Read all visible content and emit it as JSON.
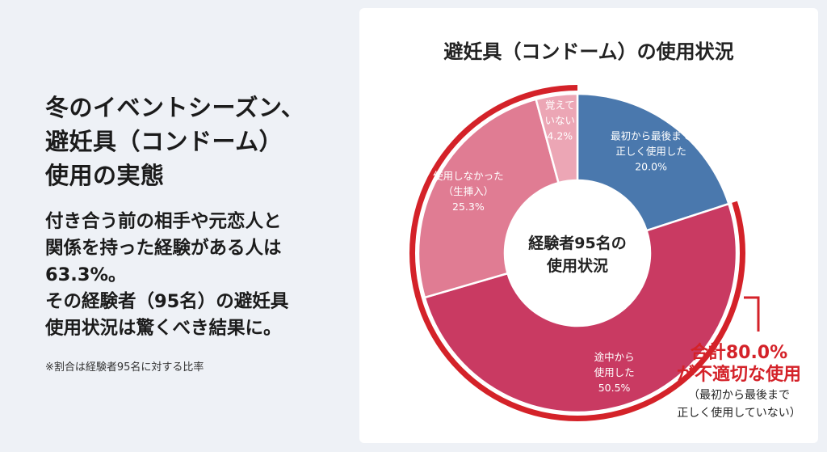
{
  "headline": {
    "line1": "冬のイベントシーズン、",
    "line2": "避妊具（コンドーム）",
    "line3": "使用の実態"
  },
  "body": {
    "line1": "付き合う前の相手や元恋人と",
    "line2": "関係を持った経験がある人は",
    "line3": "63.3%。",
    "line4": "その経験者（95名）の避妊具",
    "line5": "使用状況は驚くべき結果に。"
  },
  "note": "※割合は経験者95名に対する比率",
  "callout": {
    "line1": "合計80.0%",
    "line2": "が不適切な使用",
    "line3": "（最初から最後まで",
    "line4": "正しく使用していない）"
  },
  "colors": {
    "blue": "#4a78ad",
    "crimson": "#c93a62",
    "pink": "#e07c93",
    "light_pink": "#eca6b5",
    "red_accent": "#d42229"
  },
  "chart_data": {
    "type": "pie",
    "title": "避妊具（コンドーム）の使用状況",
    "center_label": [
      "経験者95名の",
      "使用状況"
    ],
    "slices": [
      {
        "label": [
          "最初から最後まで",
          "正しく使用した"
        ],
        "value": 20.0,
        "value_label": "20.0%",
        "color": "#4a78ad"
      },
      {
        "label": [
          "途中から",
          "使用した"
        ],
        "value": 50.5,
        "value_label": "50.5%",
        "color": "#c93a62"
      },
      {
        "label": [
          "使用しなかった",
          "（生挿入）"
        ],
        "value": 25.3,
        "value_label": "25.3%",
        "color": "#e07c93"
      },
      {
        "label": [
          "覚えて",
          "いない"
        ],
        "value": 4.2,
        "value_label": "4.2%",
        "color": "#eca6b5"
      }
    ],
    "highlight": {
      "start": 20.0,
      "end": 100.0,
      "color": "#d42229"
    }
  }
}
